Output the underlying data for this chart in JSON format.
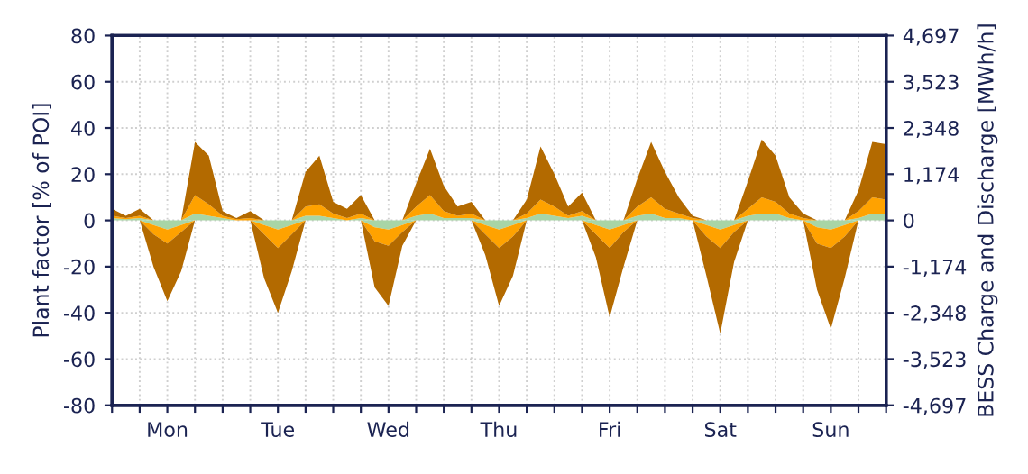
{
  "chart_data": {
    "type": "area",
    "stacked": true,
    "ylabel": "Plant factor [% of POI]",
    "y2label": "BESS Charge and Discharge [MWh/h]",
    "categories": [
      null,
      null,
      null,
      null,
      "Mon",
      null,
      null,
      null,
      null,
      null,
      null,
      null,
      "Tue",
      null,
      null,
      null,
      null,
      null,
      null,
      null,
      "Wed",
      null,
      null,
      null,
      null,
      null,
      null,
      null,
      "Thu",
      null,
      null,
      null,
      null,
      null,
      null,
      null,
      "Fri",
      null,
      null,
      null,
      null,
      null,
      null,
      null,
      "Sat",
      null,
      null,
      null,
      null,
      null,
      null,
      null,
      "Sun",
      null,
      null,
      null,
      null
    ],
    "series": [
      {
        "color": "#a8d5a6",
        "values": [
          1,
          0.5,
          1,
          -2,
          -4,
          -2,
          3,
          2,
          1,
          0,
          0,
          -2,
          -4,
          -2,
          2,
          2,
          1,
          0,
          1,
          -3,
          -4,
          -2,
          2,
          3,
          1,
          1,
          1,
          -2,
          -4,
          -2,
          1,
          3,
          2,
          1,
          2,
          -2,
          -4,
          -2,
          2,
          3,
          1,
          1,
          0,
          -2,
          -4,
          -2,
          2,
          3,
          3,
          1,
          0,
          -3,
          -4,
          -2,
          1,
          3,
          3
        ]
      },
      {
        "color": "#ffa200",
        "values": [
          1,
          0.5,
          1,
          -4,
          -6,
          -3,
          8,
          5,
          1,
          0.5,
          1,
          -4,
          -8,
          -4,
          4,
          5,
          2,
          1,
          2,
          -6,
          -7,
          -3,
          4,
          8,
          3,
          1,
          2,
          -4,
          -8,
          -5,
          2,
          6,
          4,
          1,
          2,
          -4,
          -8,
          -3,
          4,
          7,
          4,
          2,
          1,
          -5,
          -8,
          -3,
          3,
          7,
          5,
          2,
          1,
          -7,
          -8,
          -5,
          3,
          7,
          6
        ]
      },
      {
        "color": "#b36a00",
        "values": [
          3,
          1,
          3,
          -14,
          -25,
          -17,
          23,
          21,
          2,
          0.5,
          3,
          -19,
          -28,
          -16,
          15,
          21,
          5,
          4,
          8,
          -20,
          -26,
          -6,
          10,
          20,
          11,
          4,
          5,
          -9,
          -25,
          -17,
          6,
          23,
          14,
          4,
          8,
          -10,
          -30,
          -15,
          12,
          24,
          16,
          7,
          1,
          -17,
          -37,
          -13,
          12,
          25,
          20,
          7,
          2,
          -20,
          -35,
          -18,
          9,
          24,
          24
        ]
      }
    ],
    "ylim": [
      -80,
      80
    ],
    "yticks": [
      -80,
      -60,
      -40,
      -20,
      0,
      20,
      40,
      60,
      80
    ],
    "y2lim": [
      -4697,
      4697
    ],
    "y2ticks": [
      {
        "value": -4697,
        "label": "-4,697"
      },
      {
        "value": -3522.75,
        "label": "-3,523"
      },
      {
        "value": -2348.5,
        "label": "-2,348"
      },
      {
        "value": -1174.25,
        "label": "-1,174"
      },
      0,
      {
        "value": 1174.25,
        "label": "1,174"
      },
      {
        "value": 2348.5,
        "label": "2,348"
      },
      {
        "value": 3522.75,
        "label": "3,523"
      },
      {
        "value": 4697,
        "label": "4,697"
      }
    ],
    "grid": true,
    "legend": false
  }
}
